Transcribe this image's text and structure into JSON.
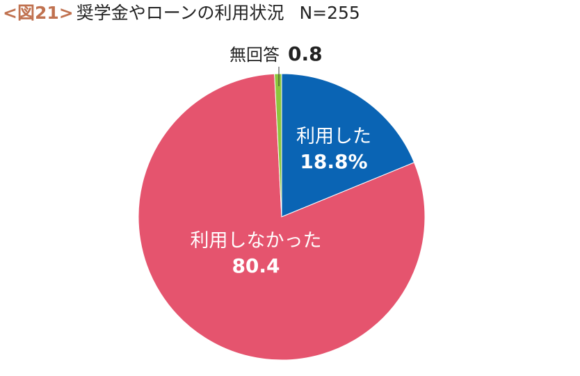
{
  "title": {
    "figure_no": "<図21>",
    "text": "奨学金やローンの利用状況",
    "n": "N=255"
  },
  "colors": {
    "used": "#0a64b4",
    "not_used": "#e5546e",
    "no_answer": "#8cc63e"
  },
  "chart_data": {
    "type": "pie",
    "title": "奨学金やローンの利用状況",
    "n_label": "N=255",
    "start": "12 o'clock, clockwise",
    "slices": [
      {
        "label": "利用した",
        "value": 18.8,
        "display": "18.8%",
        "color": "#0a64b4"
      },
      {
        "label": "利用しなかった",
        "value": 80.4,
        "display": "80.4",
        "color": "#e5546e"
      },
      {
        "label": "無回答",
        "value": 0.8,
        "display": "0.8",
        "color": "#8cc63e"
      }
    ]
  }
}
